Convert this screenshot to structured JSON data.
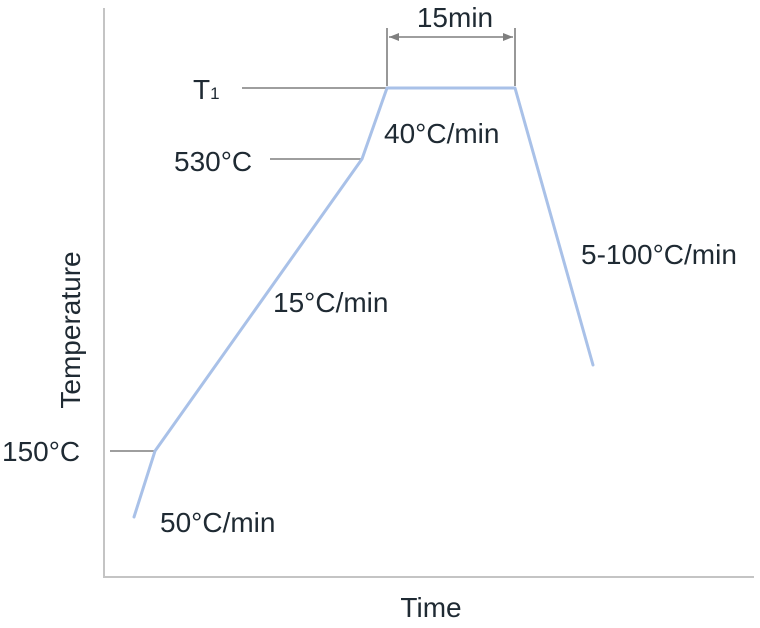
{
  "diagram": {
    "axes": {
      "x_label": "Time",
      "y_label": "Temperature"
    },
    "temperature_marks": {
      "t1_main": "T",
      "t1_sub": "1",
      "t530": "530°C",
      "t150": "150°C"
    },
    "rates": {
      "r50": "50°C/min",
      "r15": "15°C/min",
      "r40": "40°C/min",
      "rcool": "5-100°C/min"
    },
    "hold": {
      "duration": "15min"
    },
    "colors": {
      "profile_line": "#a9c1e8",
      "axis": "#c4c4c4",
      "leader": "#7f7f7f",
      "text": "#1f2a33"
    }
  }
}
